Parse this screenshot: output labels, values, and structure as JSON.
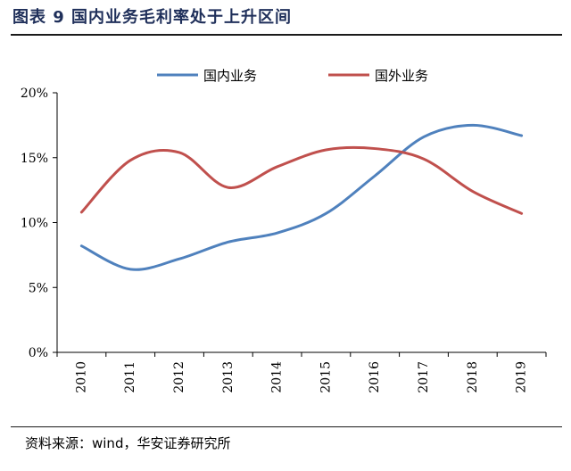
{
  "figure": {
    "title": "图表 9 国内业务毛利率处于上升区间",
    "source": "资料来源：wind，华安证券研究所"
  },
  "chart_data": {
    "type": "line",
    "categories": [
      "2010",
      "2011",
      "2012",
      "2013",
      "2014",
      "2015",
      "2016",
      "2017",
      "2018",
      "2019"
    ],
    "series": [
      {
        "name": "国内业务",
        "color": "#4f81bd",
        "values": [
          8.2,
          6.4,
          7.2,
          8.5,
          9.2,
          10.7,
          13.6,
          16.6,
          17.5,
          16.7
        ]
      },
      {
        "name": "国外业务",
        "color": "#c0504d",
        "values": [
          10.8,
          14.8,
          15.4,
          12.7,
          14.3,
          15.6,
          15.7,
          14.9,
          12.4,
          10.7
        ]
      }
    ],
    "yticks": [
      "0%",
      "5%",
      "10%",
      "15%",
      "20%"
    ],
    "ylim": [
      0,
      20
    ],
    "legend_position": "top"
  }
}
